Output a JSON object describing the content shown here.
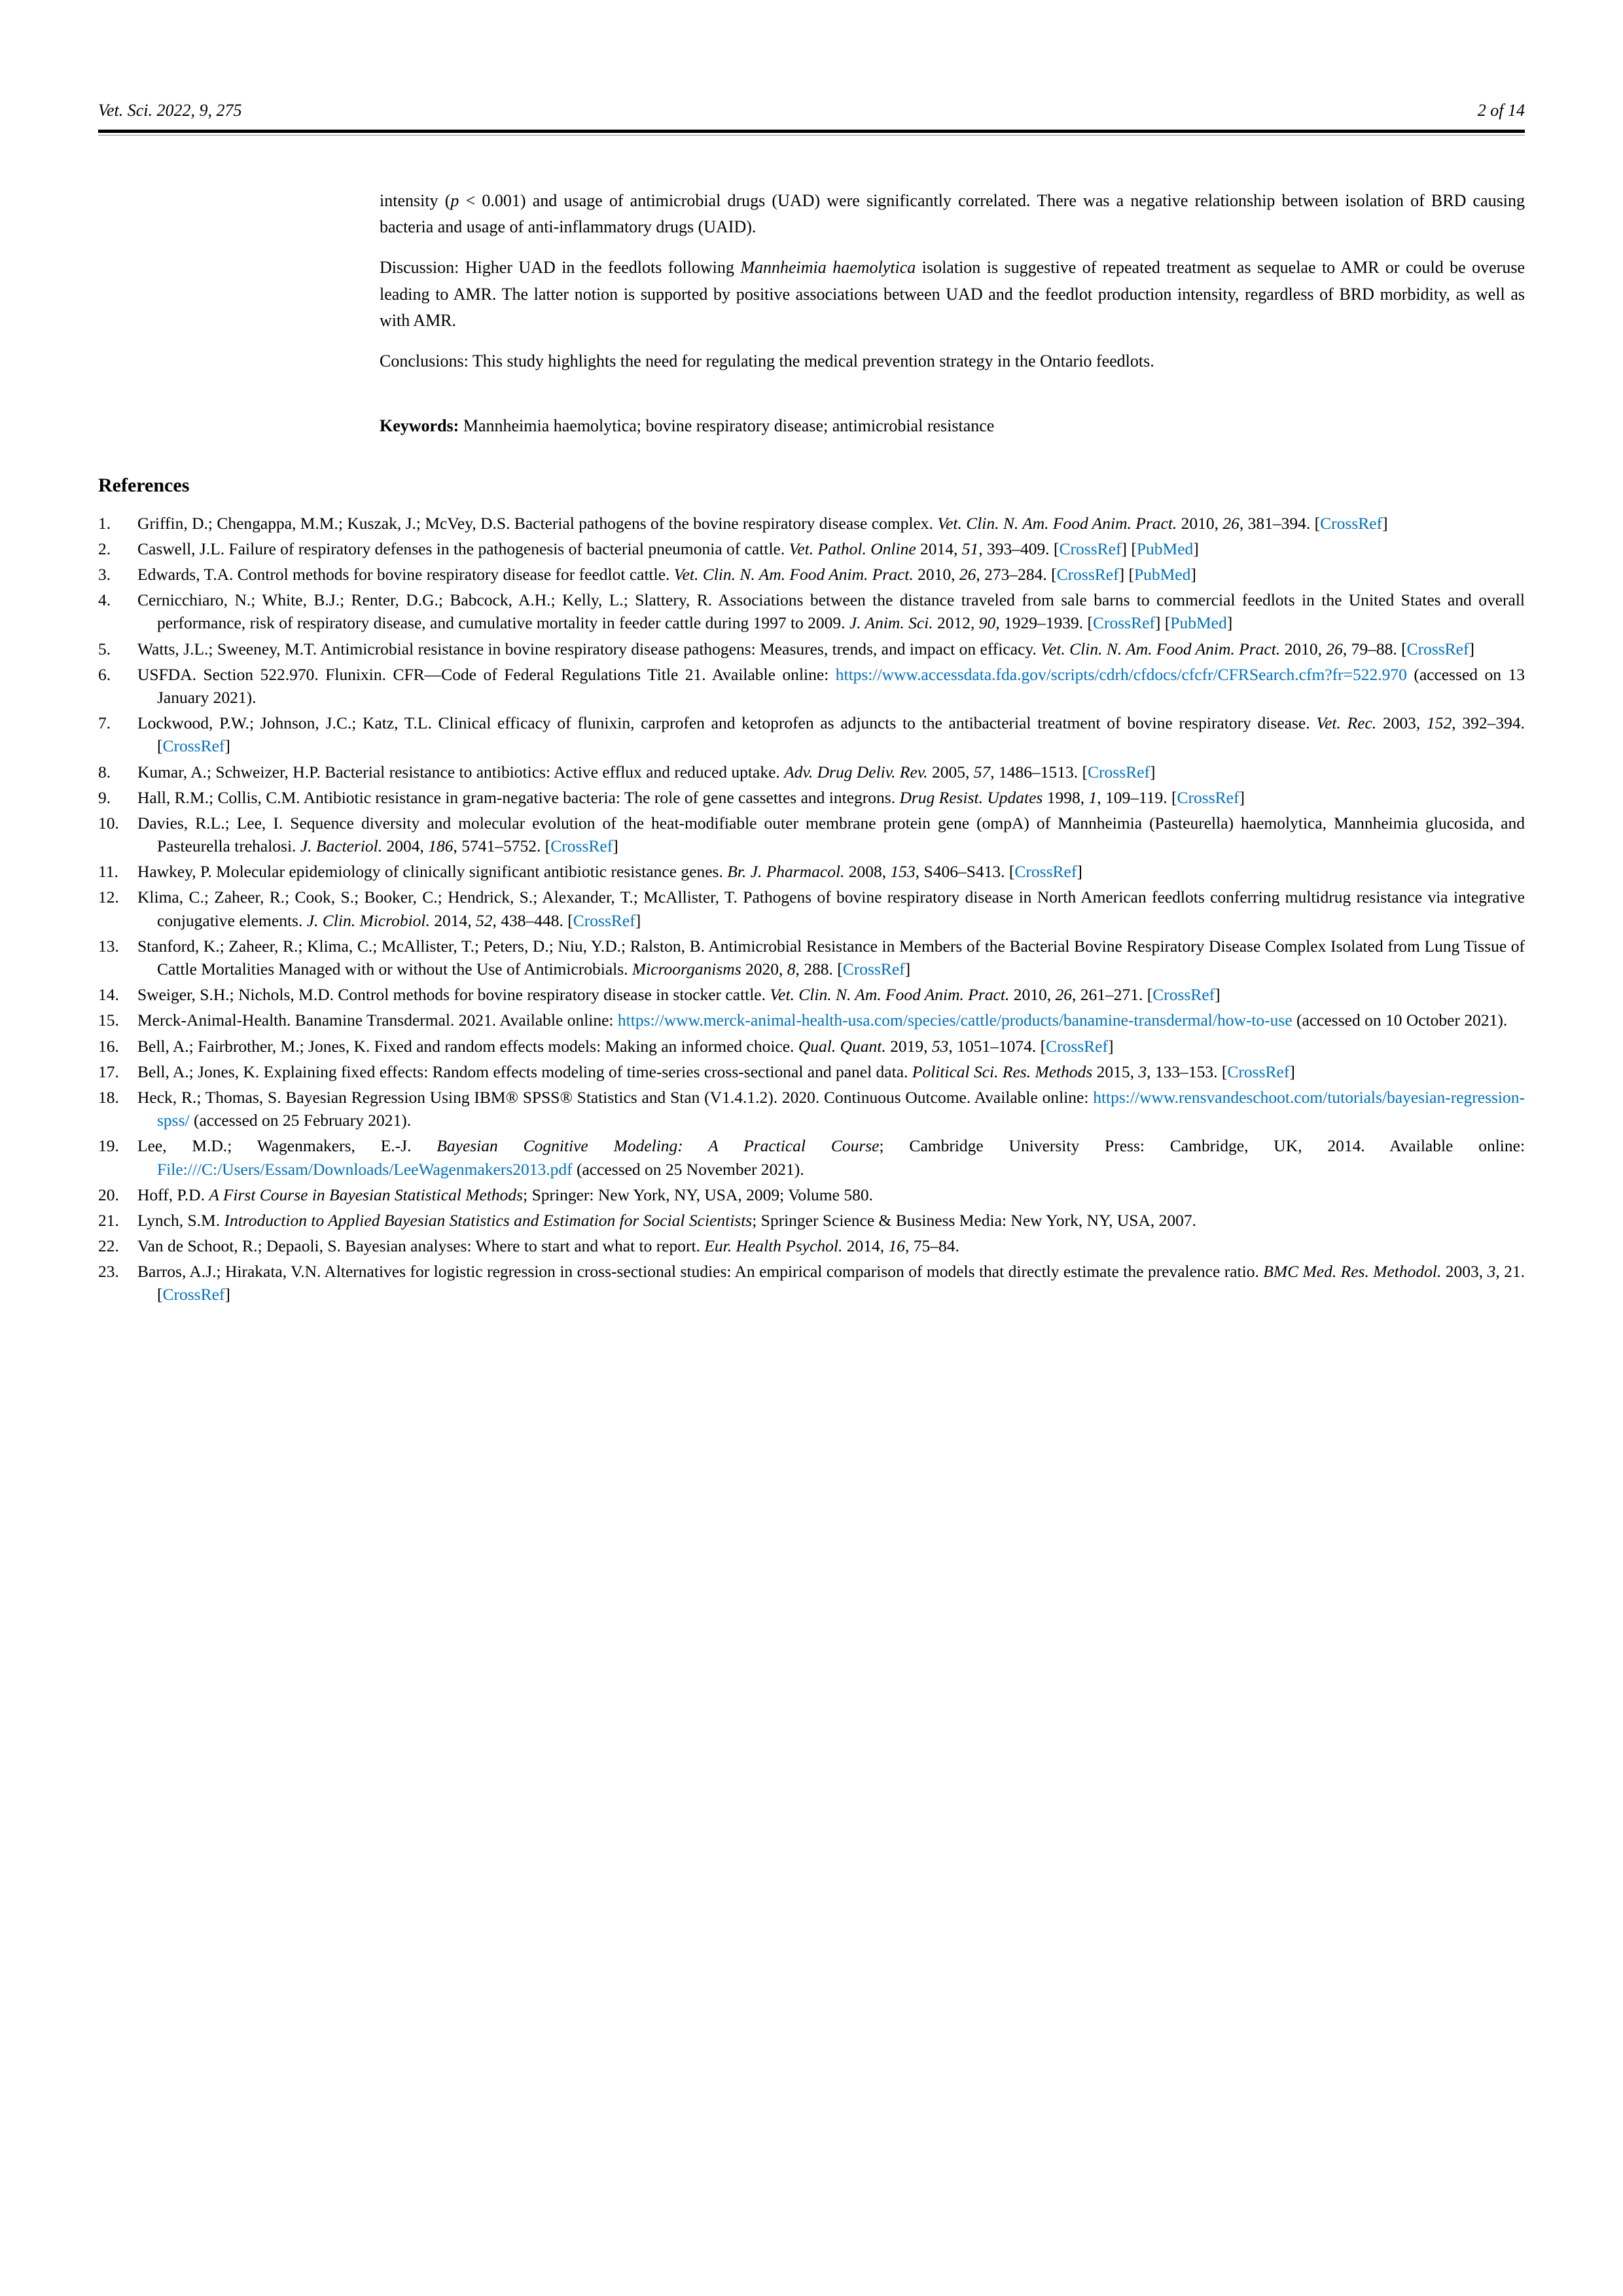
{
  "header": {
    "journal_issue": "Vet. Sci. 2022, 9, 275",
    "page_of": "2 of 14"
  },
  "abstract": {
    "part1_prefix": "intensity (",
    "part1_italic": "p",
    "part1_rest": " < 0.001) and usage of antimicrobial drugs (UAD) were significantly correlated. There was a negative relationship between isolation of BRD causing bacteria and usage of anti-inflammatory drugs (UAID).",
    "part2_prefix": "Discussion: Higher UAD in the feedlots following ",
    "part2_italic": "Mannheimia haemolytica",
    "part2_rest": " isolation is suggestive of repeated treatment as sequelae to AMR or could be overuse leading to AMR. The latter notion is supported by positive associations between UAD and the feedlot production intensity, regardless of BRD morbidity, as well as with AMR.",
    "part3": "Conclusions: This study highlights the need for regulating the medical prevention strategy in the Ontario feedlots."
  },
  "keywords": {
    "label": "Keywords:",
    "text": " Mannheimia haemolytica; bovine respiratory disease; antimicrobial resistance"
  },
  "references_title": "References",
  "references": [
    {
      "n": "1.",
      "body": "Griffin, D.; Chengappa, M.M.; Kuszak, J.; McVey, D.S. Bacterial pathogens of the bovine respiratory disease complex. ",
      "ital": "Vet. Clin. N. Am. Food Anim. Pract. ",
      "tail": "2010, ",
      "vol": "26",
      "pages": ", 381–394. ",
      "links": [
        {
          "t": "CrossRef",
          "c": "link"
        }
      ]
    },
    {
      "n": "2.",
      "body": "Caswell, J.L. Failure of respiratory defenses in the pathogenesis of bacterial pneumonia of cattle. ",
      "ital": "Vet. Pathol. Online ",
      "tail": "2014, ",
      "vol": "51",
      "pages": ", 393–409. ",
      "links": [
        {
          "t": "CrossRef",
          "c": "link"
        },
        {
          "t": " ",
          "c": ""
        },
        {
          "t": "PubMed",
          "c": "link"
        }
      ]
    },
    {
      "n": "3.",
      "body": "Edwards, T.A. Control methods for bovine respiratory disease for feedlot cattle. ",
      "ital": "Vet. Clin. N. Am. Food Anim. Pract. ",
      "tail": "2010, ",
      "vol": "26",
      "pages": ", 273–284. ",
      "links": [
        {
          "t": "CrossRef",
          "c": "link"
        },
        {
          "t": " ",
          "c": ""
        },
        {
          "t": "PubMed",
          "c": "link"
        }
      ]
    },
    {
      "n": "4.",
      "body": "Cernicchiaro, N.; White, B.J.; Renter, D.G.; Babcock, A.H.; Kelly, L.; Slattery, R. Associations between the distance traveled from sale barns to commercial feedlots in the United States and overall performance, risk of respiratory disease, and cumulative mortality in feeder cattle during 1997 to 2009. ",
      "ital": "J. Anim. Sci. ",
      "tail": "2012, ",
      "vol": "90",
      "pages": ", 1929–1939. ",
      "links": [
        {
          "t": "CrossRef",
          "c": "link"
        },
        {
          "t": " ",
          "c": ""
        },
        {
          "t": "PubMed",
          "c": "link"
        }
      ]
    },
    {
      "n": "5.",
      "body": "Watts, J.L.; Sweeney, M.T. Antimicrobial resistance in bovine respiratory disease pathogens: Measures, trends, and impact on efficacy. ",
      "ital": "Vet. Clin. N. Am. Food Anim. Pract. ",
      "tail": "2010, ",
      "vol": "26",
      "pages": ", 79–88. ",
      "links": [
        {
          "t": "CrossRef",
          "c": "link"
        }
      ]
    },
    {
      "n": "6.",
      "body": "USFDA. Section 522.970. Flunixin. CFR—Code of Federal Regulations Title 21. Available online: ",
      "links": [
        {
          "t": "https://www.accessdata.fda.gov/scripts/cdrh/cfdocs/cfcfr/CFRSearch.cfm?fr=522.970",
          "c": "link"
        }
      ],
      "tail2": " (accessed on 13 January 2021)."
    },
    {
      "n": "7.",
      "body": "Lockwood, P.W.; Johnson, J.C.; Katz, T.L. Clinical efficacy of flunixin, carprofen and ketoprofen as adjuncts to the antibacterial treatment of bovine respiratory disease. ",
      "ital": "Vet. Rec. ",
      "tail": "2003, ",
      "vol": "152",
      "pages": ", 392–394. ",
      "links": [
        {
          "t": "CrossRef",
          "c": "link"
        }
      ]
    },
    {
      "n": "8.",
      "body": "Kumar, A.; Schweizer, H.P. Bacterial resistance to antibiotics: Active efflux and reduced uptake. ",
      "ital": "Adv. Drug Deliv. Rev. ",
      "tail": "2005, ",
      "vol": "57",
      "pages": ", 1486–1513. ",
      "links": [
        {
          "t": "CrossRef",
          "c": "link"
        }
      ]
    },
    {
      "n": "9.",
      "body": "Hall, R.M.; Collis, C.M. Antibiotic resistance in gram-negative bacteria: The role of gene cassettes and integrons. ",
      "ital": "Drug Resist. Updates ",
      "tail": "1998, ",
      "vol": "1",
      "pages": ", 109–119. ",
      "links": [
        {
          "t": "CrossRef",
          "c": "link"
        }
      ]
    },
    {
      "n": "10.",
      "body": "Davies, R.L.; Lee, I. Sequence diversity and molecular evolution of the heat-modifiable outer membrane protein gene (ompA) of Mannheimia (Pasteurella) haemolytica, Mannheimia glucosida, and Pasteurella trehalosi. ",
      "ital": "J. Bacteriol. ",
      "tail": "2004, ",
      "vol": "186",
      "pages": ", 5741–5752. ",
      "links": [
        {
          "t": "CrossRef",
          "c": "link"
        }
      ]
    },
    {
      "n": "11.",
      "body": "Hawkey, P. Molecular epidemiology of clinically significant antibiotic resistance genes. ",
      "ital": "Br. J. Pharmacol. ",
      "tail": "2008, ",
      "vol": "153",
      "pages": ", S406–S413. ",
      "links": [
        {
          "t": "CrossRef",
          "c": "link"
        }
      ]
    },
    {
      "n": "12.",
      "body": "Klima, C.; Zaheer, R.; Cook, S.; Booker, C.; Hendrick, S.; Alexander, T.; McAllister, T. Pathogens of bovine respiratory disease in North American feedlots conferring multidrug resistance via integrative conjugative elements. ",
      "ital": "J. Clin. Microbiol. ",
      "tail": "2014, ",
      "vol": "52",
      "pages": ", 438–448. ",
      "links": [
        {
          "t": "CrossRef",
          "c": "link"
        }
      ]
    },
    {
      "n": "13.",
      "body": "Stanford, K.; Zaheer, R.; Klima, C.; McAllister, T.; Peters, D.; Niu, Y.D.; Ralston, B. Antimicrobial Resistance in Members of the Bacterial Bovine Respiratory Disease Complex Isolated from Lung Tissue of Cattle Mortalities Managed with or without the Use of Antimicrobials. ",
      "ital": "Microorganisms ",
      "tail": "2020, ",
      "vol": "8",
      "pages": ", 288. ",
      "links": [
        {
          "t": "CrossRef",
          "c": "link"
        }
      ]
    },
    {
      "n": "14.",
      "body": "Sweiger, S.H.; Nichols, M.D. Control methods for bovine respiratory disease in stocker cattle. ",
      "ital": "Vet. Clin. N. Am. Food Anim. Pract. ",
      "tail": "2010, ",
      "vol": "26",
      "pages": ", 261–271. ",
      "links": [
        {
          "t": "CrossRef",
          "c": "link"
        }
      ]
    },
    {
      "n": "15.",
      "body": "Merck-Animal-Health. Banamine Transdermal. 2021. Available online: ",
      "links": [
        {
          "t": "https://www.merck-animal-health-usa.com/species/cattle/products/banamine-transdermal/how-to-use",
          "c": "link"
        }
      ],
      "tail2": " (accessed on 10 October 2021)."
    },
    {
      "n": "16.",
      "body": "Bell, A.; Fairbrother, M.; Jones, K. Fixed and random effects models: Making an informed choice. ",
      "ital": "Qual. Quant. ",
      "tail": "2019, ",
      "vol": "53",
      "pages": ", 1051–1074. ",
      "links": [
        {
          "t": "CrossRef",
          "c": "link"
        }
      ]
    },
    {
      "n": "17.",
      "body": "Bell, A.; Jones, K. Explaining fixed effects: Random effects modeling of time-series cross-sectional and panel data. ",
      "ital": "Political Sci. Res. Methods ",
      "tail": "2015, ",
      "vol": "3",
      "pages": ", 133–153. ",
      "links": [
        {
          "t": "CrossRef",
          "c": "link"
        }
      ]
    },
    {
      "n": "18.",
      "body": "Heck, R.; Thomas, S. Bayesian Regression Using IBM® SPSS® Statistics and Stan (V1.4.1.2). 2020. Continuous Outcome. Available online: ",
      "links": [
        {
          "t": "https://www.rensvandeschoot.com/tutorials/bayesian-regression-spss/",
          "c": "link"
        }
      ],
      "tail2": " (accessed on 25 February 2021)."
    },
    {
      "n": "19.",
      "body": "Lee, M.D.; Wagenmakers, E.-J. ",
      "ital": "Bayesian Cognitive Modeling: A Practical Course",
      "tail": "; Cambridge University Press: Cambridge, UK, 2014. Available online: ",
      "links": [
        {
          "t": "File:///C:/Users/Essam/Downloads/LeeWagenmakers2013.pdf",
          "c": "link"
        }
      ],
      "tail2": " (accessed on 25 November 2021)."
    },
    {
      "n": "20.",
      "body": "Hoff, P.D. ",
      "ital": "A First Course in Bayesian Statistical Methods",
      "tail": "; Springer: New York, NY, USA, 2009; Volume 580."
    },
    {
      "n": "21.",
      "body": "Lynch, S.M. ",
      "ital": "Introduction to Applied Bayesian Statistics and Estimation for Social Scientists",
      "tail": "; Springer Science & Business Media: New York, NY, USA, 2007."
    },
    {
      "n": "22.",
      "body": "Van de Schoot, R.; Depaoli, S. Bayesian analyses: Where to start and what to report. ",
      "ital": "Eur. Health Psychol. ",
      "tail": "2014, ",
      "vol": "16",
      "pages": ", 75–84."
    },
    {
      "n": "23.",
      "body": "Barros, A.J.; Hirakata, V.N. Alternatives for logistic regression in cross-sectional studies: An empirical comparison of models that directly estimate the prevalence ratio. ",
      "ital": "BMC Med. Res. Methodol. ",
      "tail": "2003, ",
      "vol": "3",
      "pages": ", 21. ",
      "links": [
        {
          "t": "CrossRef",
          "c": "link"
        }
      ]
    }
  ]
}
